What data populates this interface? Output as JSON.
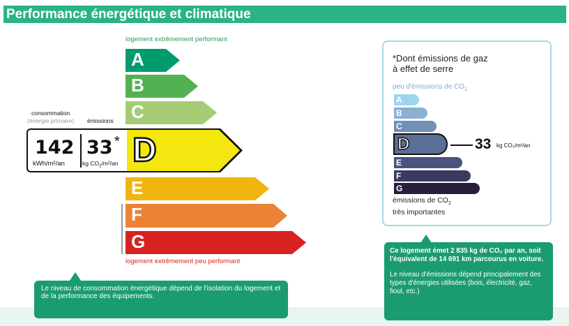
{
  "header": {
    "title": "Performance énergétique et climatique"
  },
  "energy": {
    "top_label": "logement extrêmement performant",
    "bottom_label": "logement extrêmement peu performant",
    "classes": [
      {
        "letter": "A",
        "color": "#009c6d"
      },
      {
        "letter": "B",
        "color": "#52b153"
      },
      {
        "letter": "C",
        "color": "#a5cc74"
      },
      {
        "letter": "D",
        "color": "#f4e70f"
      },
      {
        "letter": "E",
        "color": "#f0b50f"
      },
      {
        "letter": "F",
        "color": "#eb8235"
      },
      {
        "letter": "G",
        "color": "#d7221f"
      }
    ],
    "current_class": "D",
    "consumption_label": "consommation",
    "consumption_sub": "(énergie primaire)",
    "emissions_label": "émissions",
    "consumption_value": "142",
    "consumption_unit": "kWh/m²/an",
    "emissions_value": "33",
    "emissions_star": "*",
    "emissions_unit_pre": "kg CO",
    "emissions_unit_sub": "2",
    "emissions_unit_post": "/m²/an"
  },
  "note_left": "Le niveau de consommation énergétique dépend de l'isolation du logement et de la performance des équipements.",
  "climate": {
    "title_line1": "*Dont émissions de gaz",
    "title_line2": "à effet de serre",
    "top_label": "peu d'émissions de CO",
    "sub2": "2",
    "classes": [
      {
        "letter": "A",
        "color": "#9fd4f0"
      },
      {
        "letter": "B",
        "color": "#8ab0d4"
      },
      {
        "letter": "C",
        "color": "#7090b8"
      },
      {
        "letter": "D",
        "color": "#5a6f98"
      },
      {
        "letter": "E",
        "color": "#4a5480"
      },
      {
        "letter": "F",
        "color": "#3a3a60"
      },
      {
        "letter": "G",
        "color": "#2a1e40"
      }
    ],
    "current_class": "D",
    "value": "33",
    "unit": "kg CO₂/m²/an",
    "bottom_label_line1": "émissions de CO",
    "bottom_label_line2": "très importantes"
  },
  "note_right": {
    "p1": "Ce logement émet 2 835 kg de CO₂ par an, soit l'équivalent de 14 691 km parcourus en voiture.",
    "p2": "Le niveau d'émissions dépend principalement des types d'énergies utilisées (bois, électricité, gaz, fioul, etc.)"
  },
  "colors": {
    "brand": "#2bb383",
    "bubble": "#1a9c6e",
    "panel_border": "#a8d8e8"
  }
}
